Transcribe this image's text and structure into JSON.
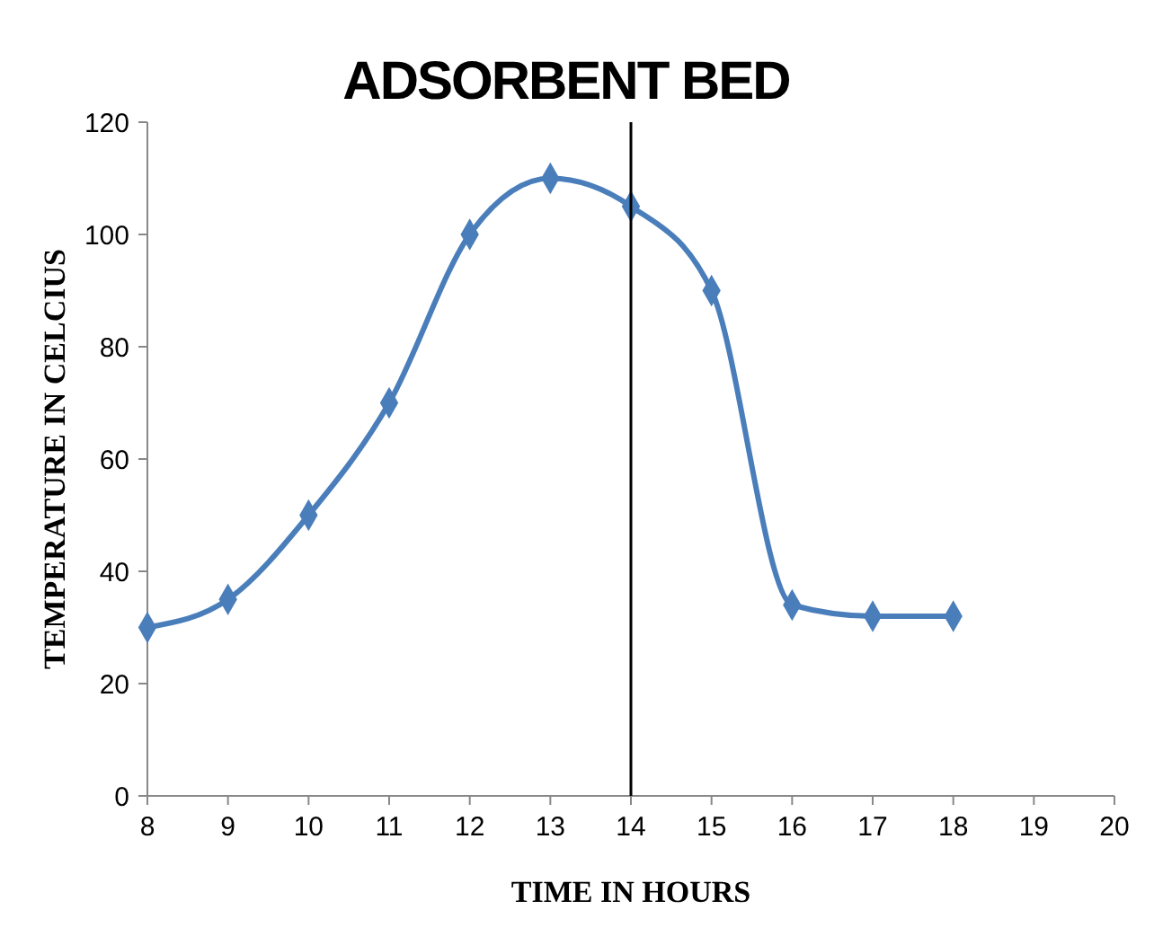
{
  "chart_data": {
    "type": "line",
    "title": "ADSORBENT BED",
    "xlabel": "TIME IN HOURS",
    "ylabel": "TEMPERATURE IN CELCIUS",
    "x": [
      8,
      9,
      10,
      11,
      12,
      13,
      14,
      15,
      16,
      17,
      18
    ],
    "series": [
      {
        "color": "#4a7ebb",
        "values": [
          30,
          35,
          50,
          70,
          100,
          110,
          105,
          90,
          34,
          32,
          32
        ]
      }
    ],
    "xlim": [
      8,
      20
    ],
    "xticks": [
      8,
      9,
      10,
      11,
      12,
      13,
      14,
      15,
      16,
      17,
      18,
      19,
      20
    ],
    "ylim": [
      0,
      120
    ],
    "yticks": [
      0,
      20,
      40,
      60,
      80,
      100,
      120
    ],
    "ref_lines": [
      {
        "axis": "x",
        "value": 14,
        "color": "#000000"
      }
    ],
    "marker": "diamond",
    "line_style": "solid"
  }
}
